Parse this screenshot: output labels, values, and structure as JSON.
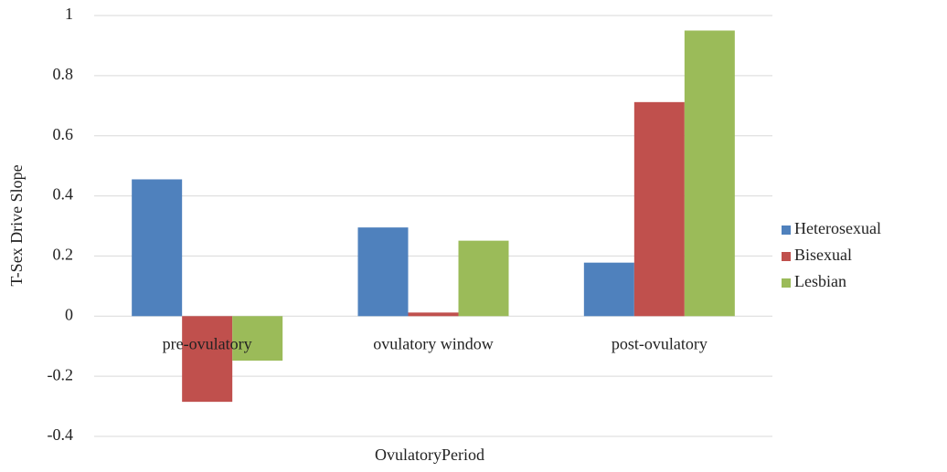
{
  "chart_data": {
    "type": "bar",
    "categories": [
      "pre-ovulatory",
      "ovulatory window",
      "post-ovulatory"
    ],
    "series": [
      {
        "name": "Heterosexual",
        "color": "#4f81bd",
        "values": [
          0.455,
          0.295,
          0.178
        ]
      },
      {
        "name": "Bisexual",
        "color": "#c0504d",
        "values": [
          -0.285,
          0.012,
          0.712
        ]
      },
      {
        "name": "Lesbian",
        "color": "#9bbb59",
        "values": [
          -0.148,
          0.251,
          0.95
        ]
      }
    ],
    "ylabel": "T-Sex Drive Slope",
    "xlabel": "OvulatoryPeriod",
    "ylim": [
      -0.4,
      1
    ],
    "yticks": [
      -0.4,
      -0.2,
      0,
      0.2,
      0.4,
      0.6,
      0.8,
      1
    ],
    "grid": true,
    "legend": "right"
  }
}
